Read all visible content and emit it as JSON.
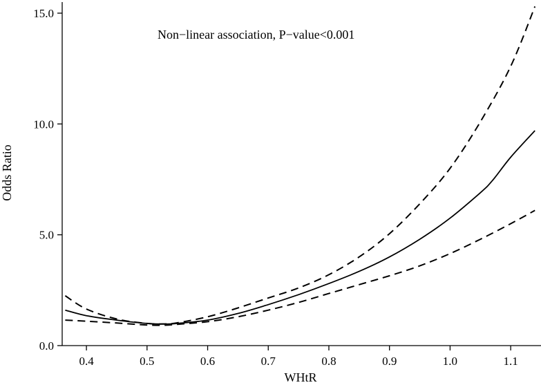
{
  "chart_data": {
    "type": "line",
    "annotation": "Non−linear association, P−value<0.001",
    "xlabel": "WHtR",
    "ylabel": "Odds Ratio",
    "xlim": [
      0.36,
      1.15
    ],
    "ylim": [
      0,
      15.5
    ],
    "x_ticks": [
      0.4,
      0.5,
      0.6,
      0.7,
      0.8,
      0.9,
      1.0,
      1.1
    ],
    "x_tick_labels": [
      "0.4",
      "0.5",
      "0.6",
      "0.7",
      "0.8",
      "0.9",
      "1.0",
      "1.1"
    ],
    "y_ticks": [
      0,
      5,
      10,
      15
    ],
    "y_tick_labels": [
      "0.0",
      "5.0",
      "10.0",
      "15.0"
    ],
    "grid": false,
    "legend": "none",
    "series": [
      {
        "role": "estimate",
        "style": "solid",
        "x": [
          0.365,
          0.4,
          0.45,
          0.5,
          0.53,
          0.55,
          0.6,
          0.65,
          0.7,
          0.75,
          0.8,
          0.85,
          0.9,
          0.95,
          1.0,
          1.05,
          1.07,
          1.1,
          1.14
        ],
        "y": [
          1.6,
          1.35,
          1.15,
          1.0,
          0.97,
          1.0,
          1.15,
          1.45,
          1.85,
          2.3,
          2.8,
          3.35,
          4.0,
          4.8,
          5.75,
          6.9,
          7.45,
          8.5,
          9.7
        ]
      },
      {
        "role": "upper-ci",
        "style": "dashed",
        "x": [
          0.365,
          0.4,
          0.45,
          0.5,
          0.53,
          0.55,
          0.6,
          0.65,
          0.7,
          0.75,
          0.8,
          0.85,
          0.9,
          0.95,
          1.0,
          1.05,
          1.1,
          1.14
        ],
        "y": [
          2.25,
          1.65,
          1.2,
          1.0,
          0.98,
          1.03,
          1.3,
          1.7,
          2.15,
          2.6,
          3.2,
          4.0,
          5.05,
          6.4,
          8.0,
          10.1,
          12.6,
          15.3
        ]
      },
      {
        "role": "lower-ci",
        "style": "dashed",
        "x": [
          0.365,
          0.4,
          0.45,
          0.5,
          0.53,
          0.55,
          0.6,
          0.65,
          0.7,
          0.75,
          0.8,
          0.85,
          0.9,
          0.95,
          1.0,
          1.05,
          1.1,
          1.14
        ],
        "y": [
          1.15,
          1.1,
          1.02,
          0.93,
          0.92,
          0.96,
          1.08,
          1.3,
          1.6,
          1.95,
          2.35,
          2.75,
          3.15,
          3.6,
          4.15,
          4.8,
          5.5,
          6.1
        ]
      }
    ]
  }
}
